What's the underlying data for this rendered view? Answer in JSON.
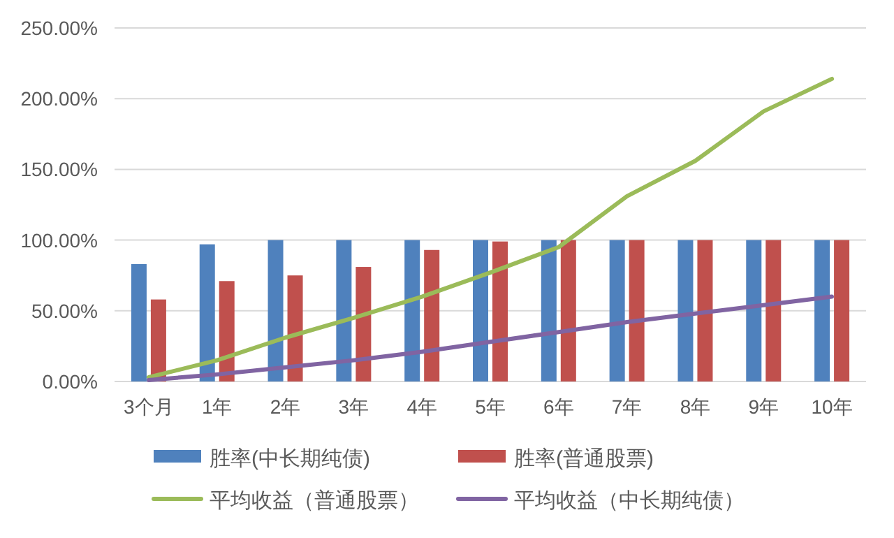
{
  "chart_data": {
    "type": "bar",
    "categories": [
      "3个月",
      "1年",
      "2年",
      "3年",
      "4年",
      "5年",
      "6年",
      "7年",
      "8年",
      "9年",
      "10年"
    ],
    "series": [
      {
        "name": "胜率(中长期纯债)",
        "color": "#4f81bd",
        "values": [
          83,
          97,
          100,
          100,
          100,
          100,
          100,
          100,
          100,
          100,
          100
        ]
      },
      {
        "name": "胜率(普通股票)",
        "color": "#c0504d",
        "values": [
          58,
          71,
          75,
          81,
          93,
          99,
          100,
          100,
          100,
          100,
          100
        ]
      },
      {
        "name": "平均收益（普通股票）",
        "type": "line",
        "color": "#9bbb59",
        "values": [
          3,
          15,
          31,
          45,
          60,
          77,
          95,
          131,
          156,
          191,
          214
        ]
      },
      {
        "name": "平均收益（中长期纯债）",
        "type": "line",
        "color": "#8064a2",
        "values": [
          1,
          5,
          10,
          15,
          21,
          28,
          35,
          42,
          48,
          54,
          60
        ]
      }
    ],
    "ylim": [
      0,
      250
    ],
    "yticks": [
      {
        "value": 0,
        "label": "0.00%"
      },
      {
        "value": 50,
        "label": "50.00%"
      },
      {
        "value": 100,
        "label": "100.00%"
      },
      {
        "value": 150,
        "label": "150.00%"
      },
      {
        "value": 200,
        "label": "200.00%"
      },
      {
        "value": 250,
        "label": "250.00%"
      }
    ],
    "grid": "y",
    "legend": "bottom",
    "marker": "none",
    "line_style": "solid"
  }
}
